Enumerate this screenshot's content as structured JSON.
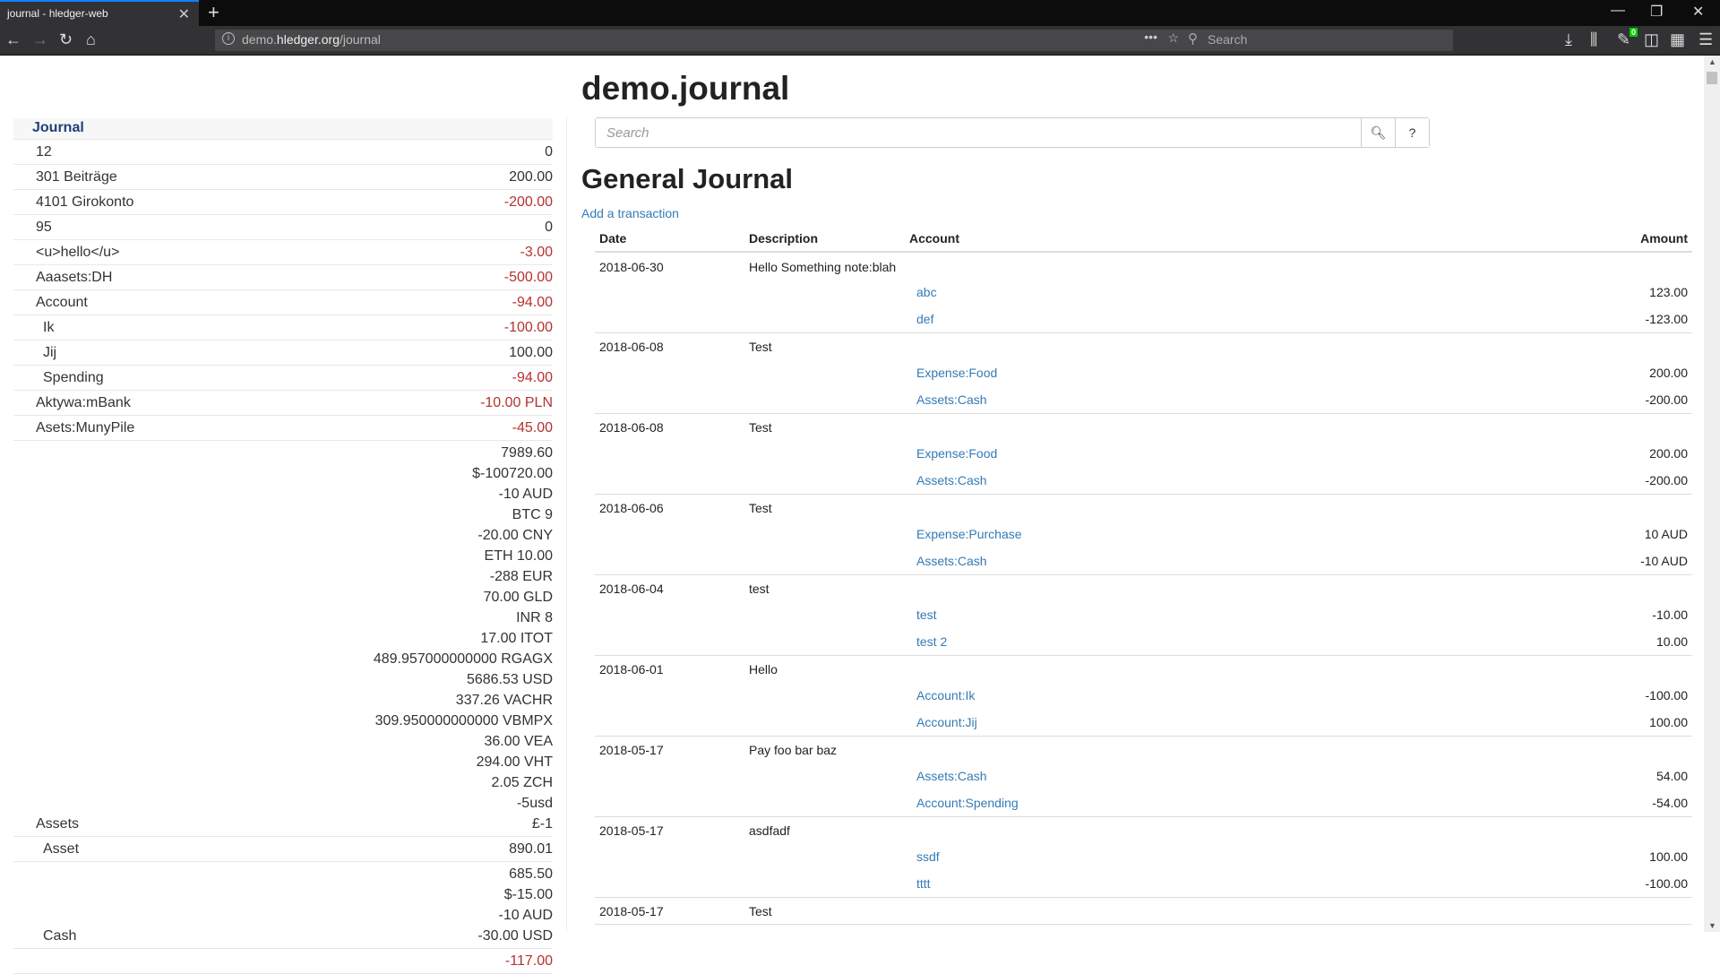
{
  "browser": {
    "tab_title": "journal - hledger-web",
    "url_host": "demo.",
    "url_domain": "hledger.org",
    "url_path": "/journal",
    "search_placeholder": "Search",
    "badge_count": "0"
  },
  "sidebar": {
    "header": "Journal",
    "rows": [
      {
        "name": "12",
        "indent": 1,
        "amounts": [
          "0"
        ]
      },
      {
        "name": "301 Beiträge",
        "indent": 1,
        "amounts": [
          "200.00"
        ]
      },
      {
        "name": "4101 Girokonto",
        "indent": 1,
        "amounts": [
          "-200.00"
        ]
      },
      {
        "name": "95",
        "indent": 1,
        "amounts": [
          "0"
        ]
      },
      {
        "name": "<u>hello</u>",
        "indent": 1,
        "amounts": [
          "-3.00"
        ]
      },
      {
        "name": "Aaasets:DH",
        "indent": 1,
        "amounts": [
          "-500.00"
        ]
      },
      {
        "name": "Account",
        "indent": 1,
        "amounts": [
          "-94.00"
        ]
      },
      {
        "name": "Ik",
        "indent": 2,
        "amounts": [
          "-100.00"
        ]
      },
      {
        "name": "Jij",
        "indent": 2,
        "amounts": [
          "100.00"
        ]
      },
      {
        "name": "Spending",
        "indent": 2,
        "amounts": [
          "-94.00"
        ]
      },
      {
        "name": "Aktywa:mBank",
        "indent": 1,
        "amounts": [
          "-10.00 PLN"
        ]
      },
      {
        "name": "Asets:MunyPile",
        "indent": 1,
        "amounts": [
          "-45.00"
        ]
      },
      {
        "name": "Assets",
        "indent": 1,
        "amounts": [
          "7989.60",
          "$-100720.00",
          "-10 AUD",
          "BTC 9",
          "-20.00 CNY",
          "ETH 10.00",
          "-288 EUR",
          "70.00 GLD",
          "INR 8",
          "17.00 ITOT",
          "489.957000000000 RGAGX",
          "5686.53 USD",
          "337.26 VACHR",
          "309.950000000000 VBMPX",
          "36.00 VEA",
          "294.00 VHT",
          "2.05 ZCH",
          "-5usd",
          "£-1"
        ]
      },
      {
        "name": "Asset",
        "indent": 2,
        "amounts": [
          "890.01"
        ]
      },
      {
        "name": "Cash",
        "indent": 2,
        "amounts": [
          "685.50",
          "$-15.00",
          "-10 AUD",
          "-30.00 USD"
        ]
      },
      {
        "name": "",
        "indent": 2,
        "amounts": [
          "-117.00"
        ]
      }
    ]
  },
  "main": {
    "title": "demo.journal",
    "search_placeholder": "Search",
    "help_label": "?",
    "heading": "General Journal",
    "add_link": "Add a transaction",
    "columns": [
      "Date",
      "Description",
      "Account",
      "Amount"
    ],
    "transactions": [
      {
        "date": "2018-06-30",
        "description": "Hello Something note:blah",
        "postings": [
          {
            "account": "abc",
            "amount": "123.00"
          },
          {
            "account": "def",
            "amount": "-123.00"
          }
        ]
      },
      {
        "date": "2018-06-08",
        "description": "Test",
        "postings": [
          {
            "account": "Expense:Food",
            "amount": "200.00"
          },
          {
            "account": "Assets:Cash",
            "amount": "-200.00"
          }
        ]
      },
      {
        "date": "2018-06-08",
        "description": "Test",
        "postings": [
          {
            "account": "Expense:Food",
            "amount": "200.00"
          },
          {
            "account": "Assets:Cash",
            "amount": "-200.00"
          }
        ]
      },
      {
        "date": "2018-06-06",
        "description": "Test",
        "postings": [
          {
            "account": "Expense:Purchase",
            "amount": "10 AUD"
          },
          {
            "account": "Assets:Cash",
            "amount": "-10 AUD"
          }
        ]
      },
      {
        "date": "2018-06-04",
        "description": "test",
        "postings": [
          {
            "account": "test",
            "amount": "-10.00"
          },
          {
            "account": "test 2",
            "amount": "10.00"
          }
        ]
      },
      {
        "date": "2018-06-01",
        "description": "Hello",
        "postings": [
          {
            "account": "Account:Ik",
            "amount": "-100.00"
          },
          {
            "account": "Account:Jij",
            "amount": "100.00"
          }
        ]
      },
      {
        "date": "2018-05-17",
        "description": "Pay foo bar baz",
        "postings": [
          {
            "account": "Assets:Cash",
            "amount": "54.00"
          },
          {
            "account": "Account:Spending",
            "amount": "-54.00"
          }
        ]
      },
      {
        "date": "2018-05-17",
        "description": "asdfadf",
        "postings": [
          {
            "account": "ssdf",
            "amount": "100.00"
          },
          {
            "account": "tttt",
            "amount": "-100.00"
          }
        ]
      },
      {
        "date": "2018-05-17",
        "description": "Test",
        "postings": []
      }
    ]
  },
  "colors": {
    "link": "#337ab7",
    "negative": "#b8312f",
    "journal_header": "#1f3f77"
  }
}
